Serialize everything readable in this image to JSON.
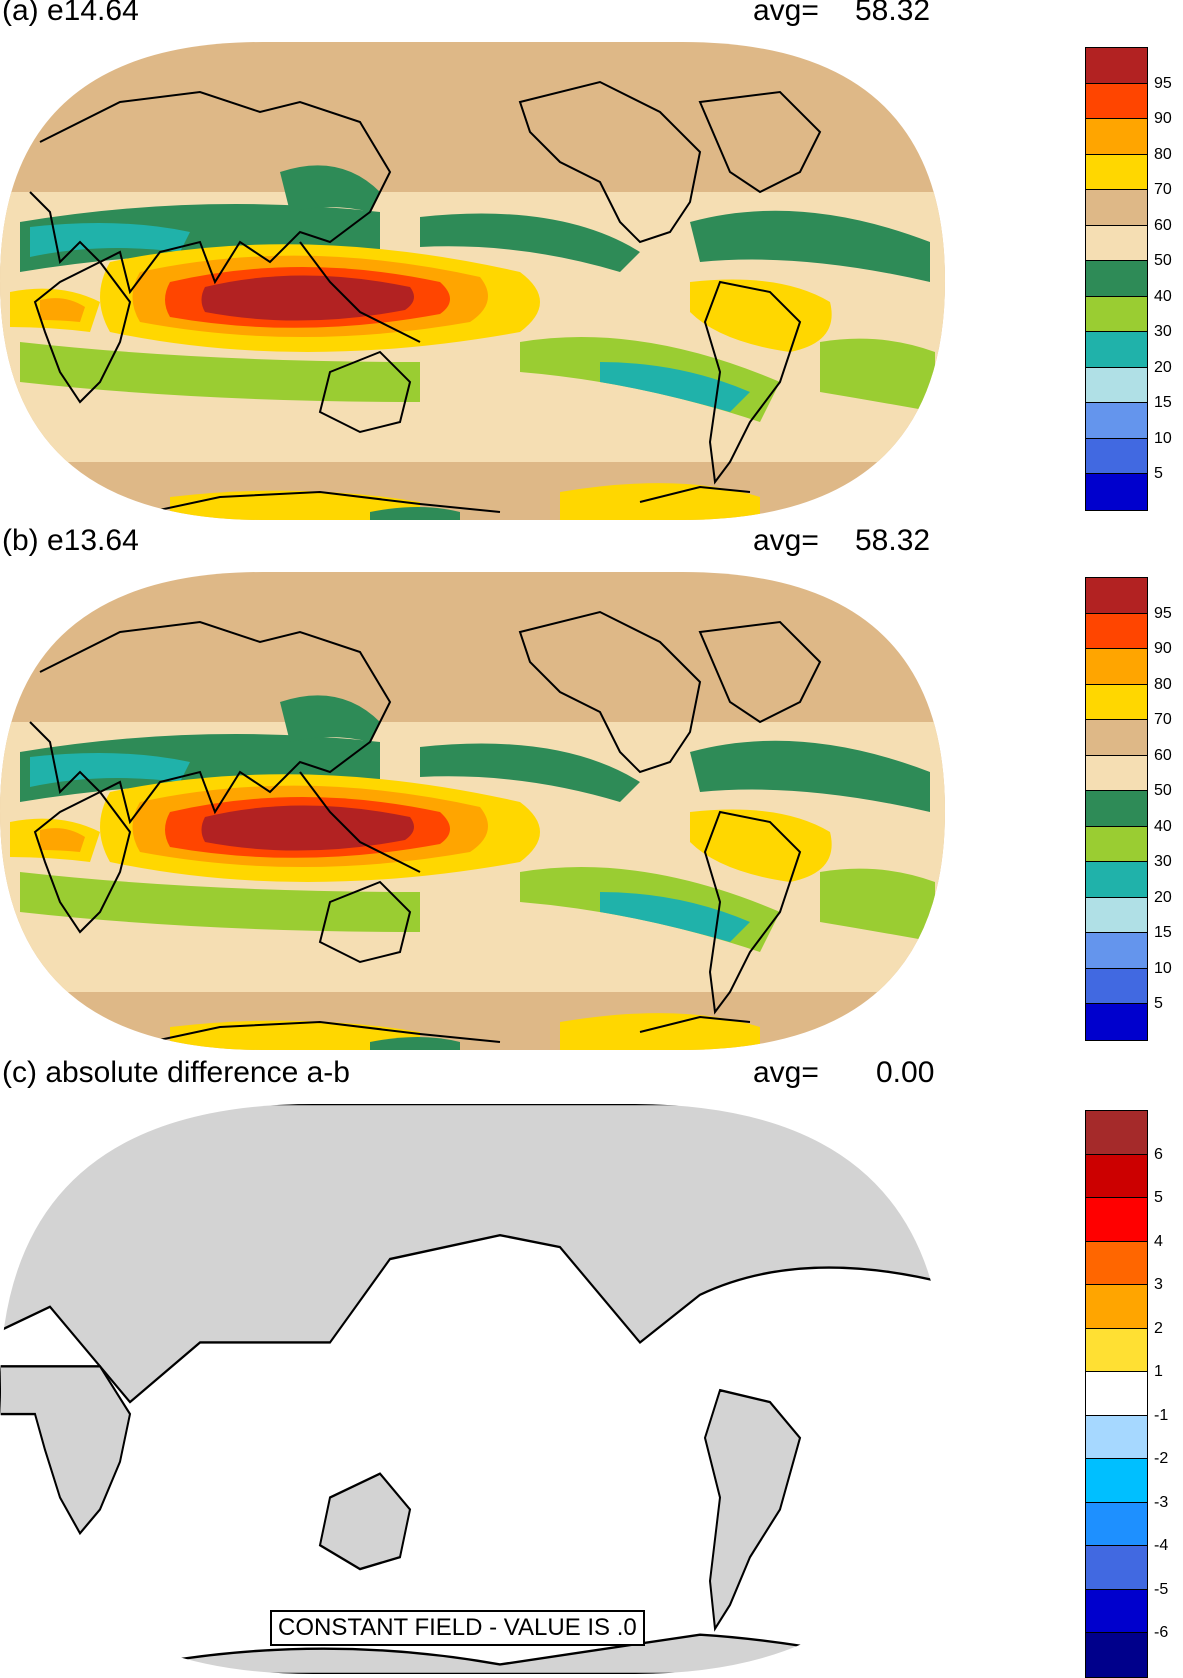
{
  "panels": [
    {
      "title": "(a) e14.64",
      "avg_label": "avg=",
      "avg_value": "58.32",
      "colorbar": {
        "colors": [
          "#b22222",
          "#ff4500",
          "#ffa500",
          "#ffd700",
          "#deb887",
          "#f5deb3",
          "#2e8b57",
          "#9acd32",
          "#20b2aa",
          "#b0e0e6",
          "#6495ed",
          "#4169e1",
          "#0000cd"
        ],
        "labels": [
          "95",
          "90",
          "80",
          "70",
          "60",
          "50",
          "40",
          "30",
          "20",
          "15",
          "10",
          "5"
        ]
      }
    },
    {
      "title": "(b) e13.64",
      "avg_label": "avg=",
      "avg_value": "58.32",
      "colorbar": {
        "colors": [
          "#b22222",
          "#ff4500",
          "#ffa500",
          "#ffd700",
          "#deb887",
          "#f5deb3",
          "#2e8b57",
          "#9acd32",
          "#20b2aa",
          "#b0e0e6",
          "#6495ed",
          "#4169e1",
          "#0000cd"
        ],
        "labels": [
          "95",
          "90",
          "80",
          "70",
          "60",
          "50",
          "40",
          "30",
          "20",
          "15",
          "10",
          "5"
        ]
      }
    },
    {
      "title": "(c) absolute difference a-b",
      "avg_label": "avg=",
      "avg_value": "0.00",
      "constant_field_text": "CONSTANT FIELD - VALUE IS .0",
      "colorbar": {
        "colors": [
          "#a52a2a",
          "#cc0000",
          "#ff0000",
          "#ff6600",
          "#ffa500",
          "#ffe033",
          "#ffffff",
          "#a6d8ff",
          "#00bfff",
          "#1e90ff",
          "#4169e1",
          "#0000cd",
          "#00008b"
        ],
        "labels": [
          "6",
          "5",
          "4",
          "3",
          "2",
          "1",
          "-1",
          "-2",
          "-3",
          "-4",
          "-5",
          "-6"
        ]
      }
    }
  ]
}
